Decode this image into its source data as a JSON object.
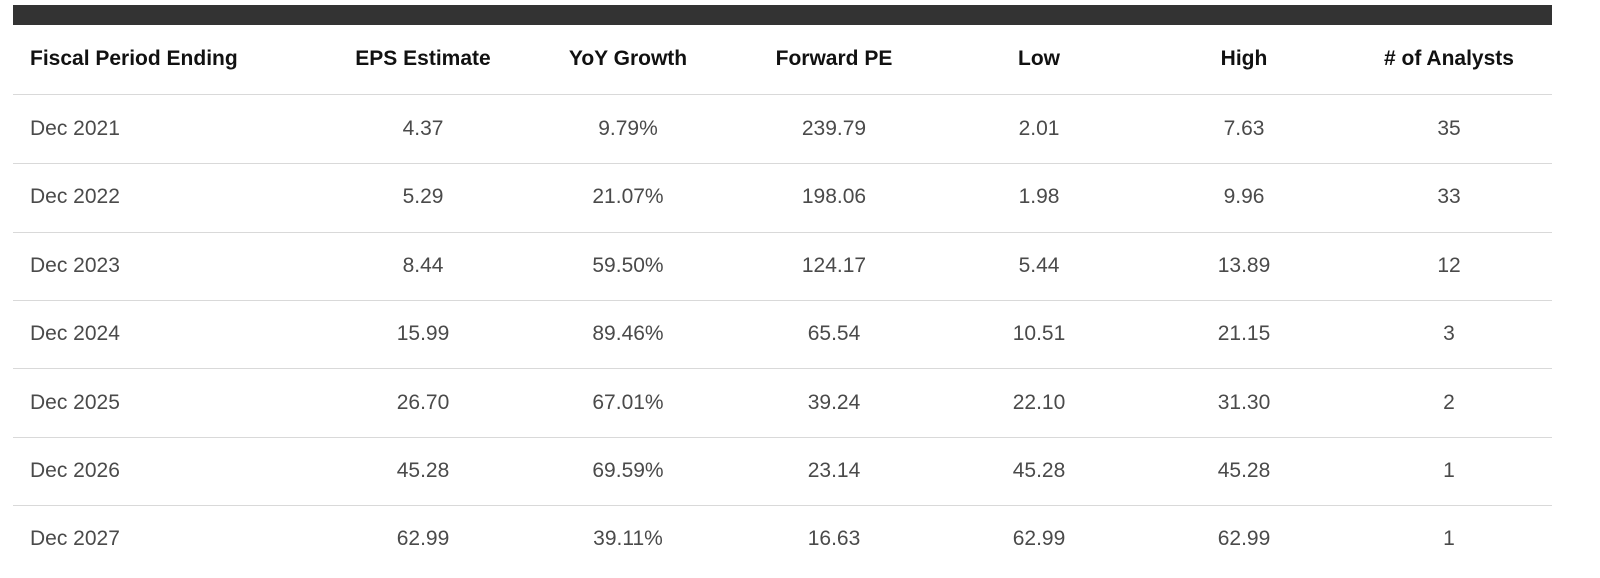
{
  "table": {
    "header": [
      "Fiscal Period Ending",
      "EPS Estimate",
      "YoY Growth",
      "Forward PE",
      "Low",
      "High",
      "# of Analysts"
    ],
    "rows": [
      [
        "Dec 2021",
        "4.37",
        "9.79%",
        "239.79",
        "2.01",
        "7.63",
        "35"
      ],
      [
        "Dec 2022",
        "5.29",
        "21.07%",
        "198.06",
        "1.98",
        "9.96",
        "33"
      ],
      [
        "Dec 2023",
        "8.44",
        "59.50%",
        "124.17",
        "5.44",
        "13.89",
        "12"
      ],
      [
        "Dec 2024",
        "15.99",
        "89.46%",
        "65.54",
        "10.51",
        "21.15",
        "3"
      ],
      [
        "Dec 2025",
        "26.70",
        "67.01%",
        "39.24",
        "22.10",
        "31.30",
        "2"
      ],
      [
        "Dec 2026",
        "45.28",
        "69.59%",
        "23.14",
        "45.28",
        "45.28",
        "1"
      ],
      [
        "Dec 2027",
        "62.99",
        "39.11%",
        "16.63",
        "62.99",
        "62.99",
        "1"
      ]
    ]
  }
}
